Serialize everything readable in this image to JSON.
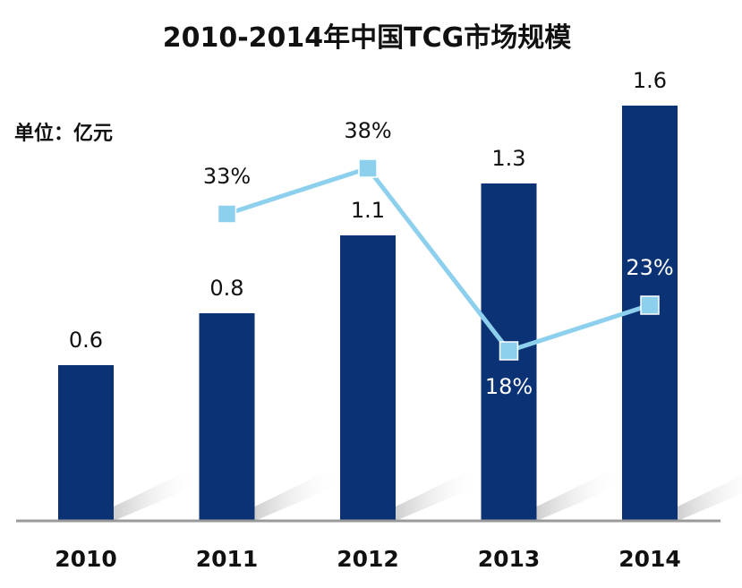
{
  "chart_data": {
    "type": "bar",
    "title": "2010-2014年中国TCG市场规模",
    "unit": "单位：亿元",
    "categories": [
      "2010",
      "2011",
      "2012",
      "2013",
      "2014"
    ],
    "series": [
      {
        "type": "bar",
        "values": [
          0.6,
          0.8,
          1.1,
          1.3,
          1.6
        ],
        "labels": [
          "0.6",
          "0.8",
          "1.1",
          "1.3",
          "1.6"
        ],
        "color": "#0b3275"
      },
      {
        "type": "line",
        "x": [
          "2011",
          "2012",
          "2013",
          "2014"
        ],
        "values": [
          33,
          38,
          18,
          23
        ],
        "labels": [
          "33%",
          "38%",
          "18%",
          "23%"
        ],
        "color": "#8dd0ee"
      }
    ],
    "ylim": [
      0,
      1.6
    ],
    "grid": false,
    "legend": "none"
  }
}
